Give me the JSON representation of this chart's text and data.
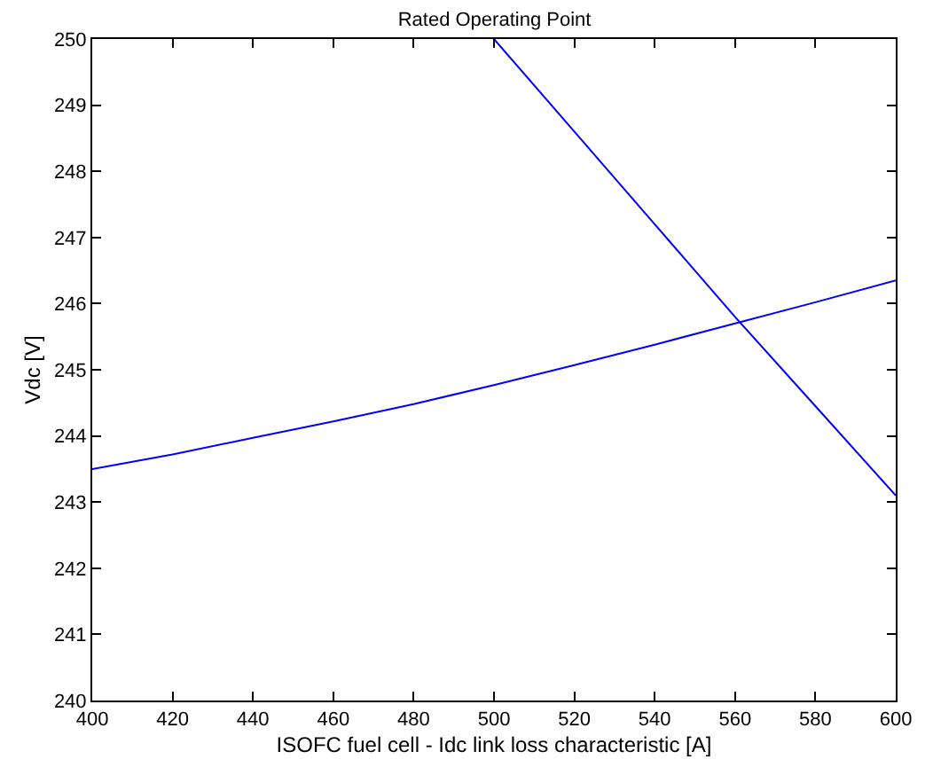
{
  "chart_data": {
    "type": "line",
    "title": "Rated Operating Point",
    "xlabel": "ISOFC fuel cell - Idc link loss characteristic [A]",
    "ylabel": "Vdc [V]",
    "xlim": [
      400,
      600
    ],
    "xticks": [
      400,
      420,
      440,
      460,
      480,
      500,
      520,
      540,
      560,
      580,
      600
    ],
    "ylim": [
      240,
      250
    ],
    "yticks": [
      240,
      241,
      242,
      243,
      244,
      245,
      246,
      247,
      248,
      249,
      250
    ],
    "line_style": "solid",
    "marker": "none",
    "series": [
      {
        "color": "#0000ff",
        "x": [
          400,
          420,
          440,
          460,
          480,
          500,
          520,
          540,
          560,
          580,
          600
        ],
        "values": [
          243.5,
          243.72,
          243.97,
          244.22,
          244.48,
          244.77,
          245.07,
          245.38,
          245.7,
          246.02,
          246.35
        ]
      },
      {
        "color": "#0000ff",
        "x": [
          500,
          520,
          540,
          560,
          580,
          600
        ],
        "values": [
          250,
          248.6,
          247.2,
          245.8,
          244.45,
          243.1
        ]
      }
    ]
  }
}
